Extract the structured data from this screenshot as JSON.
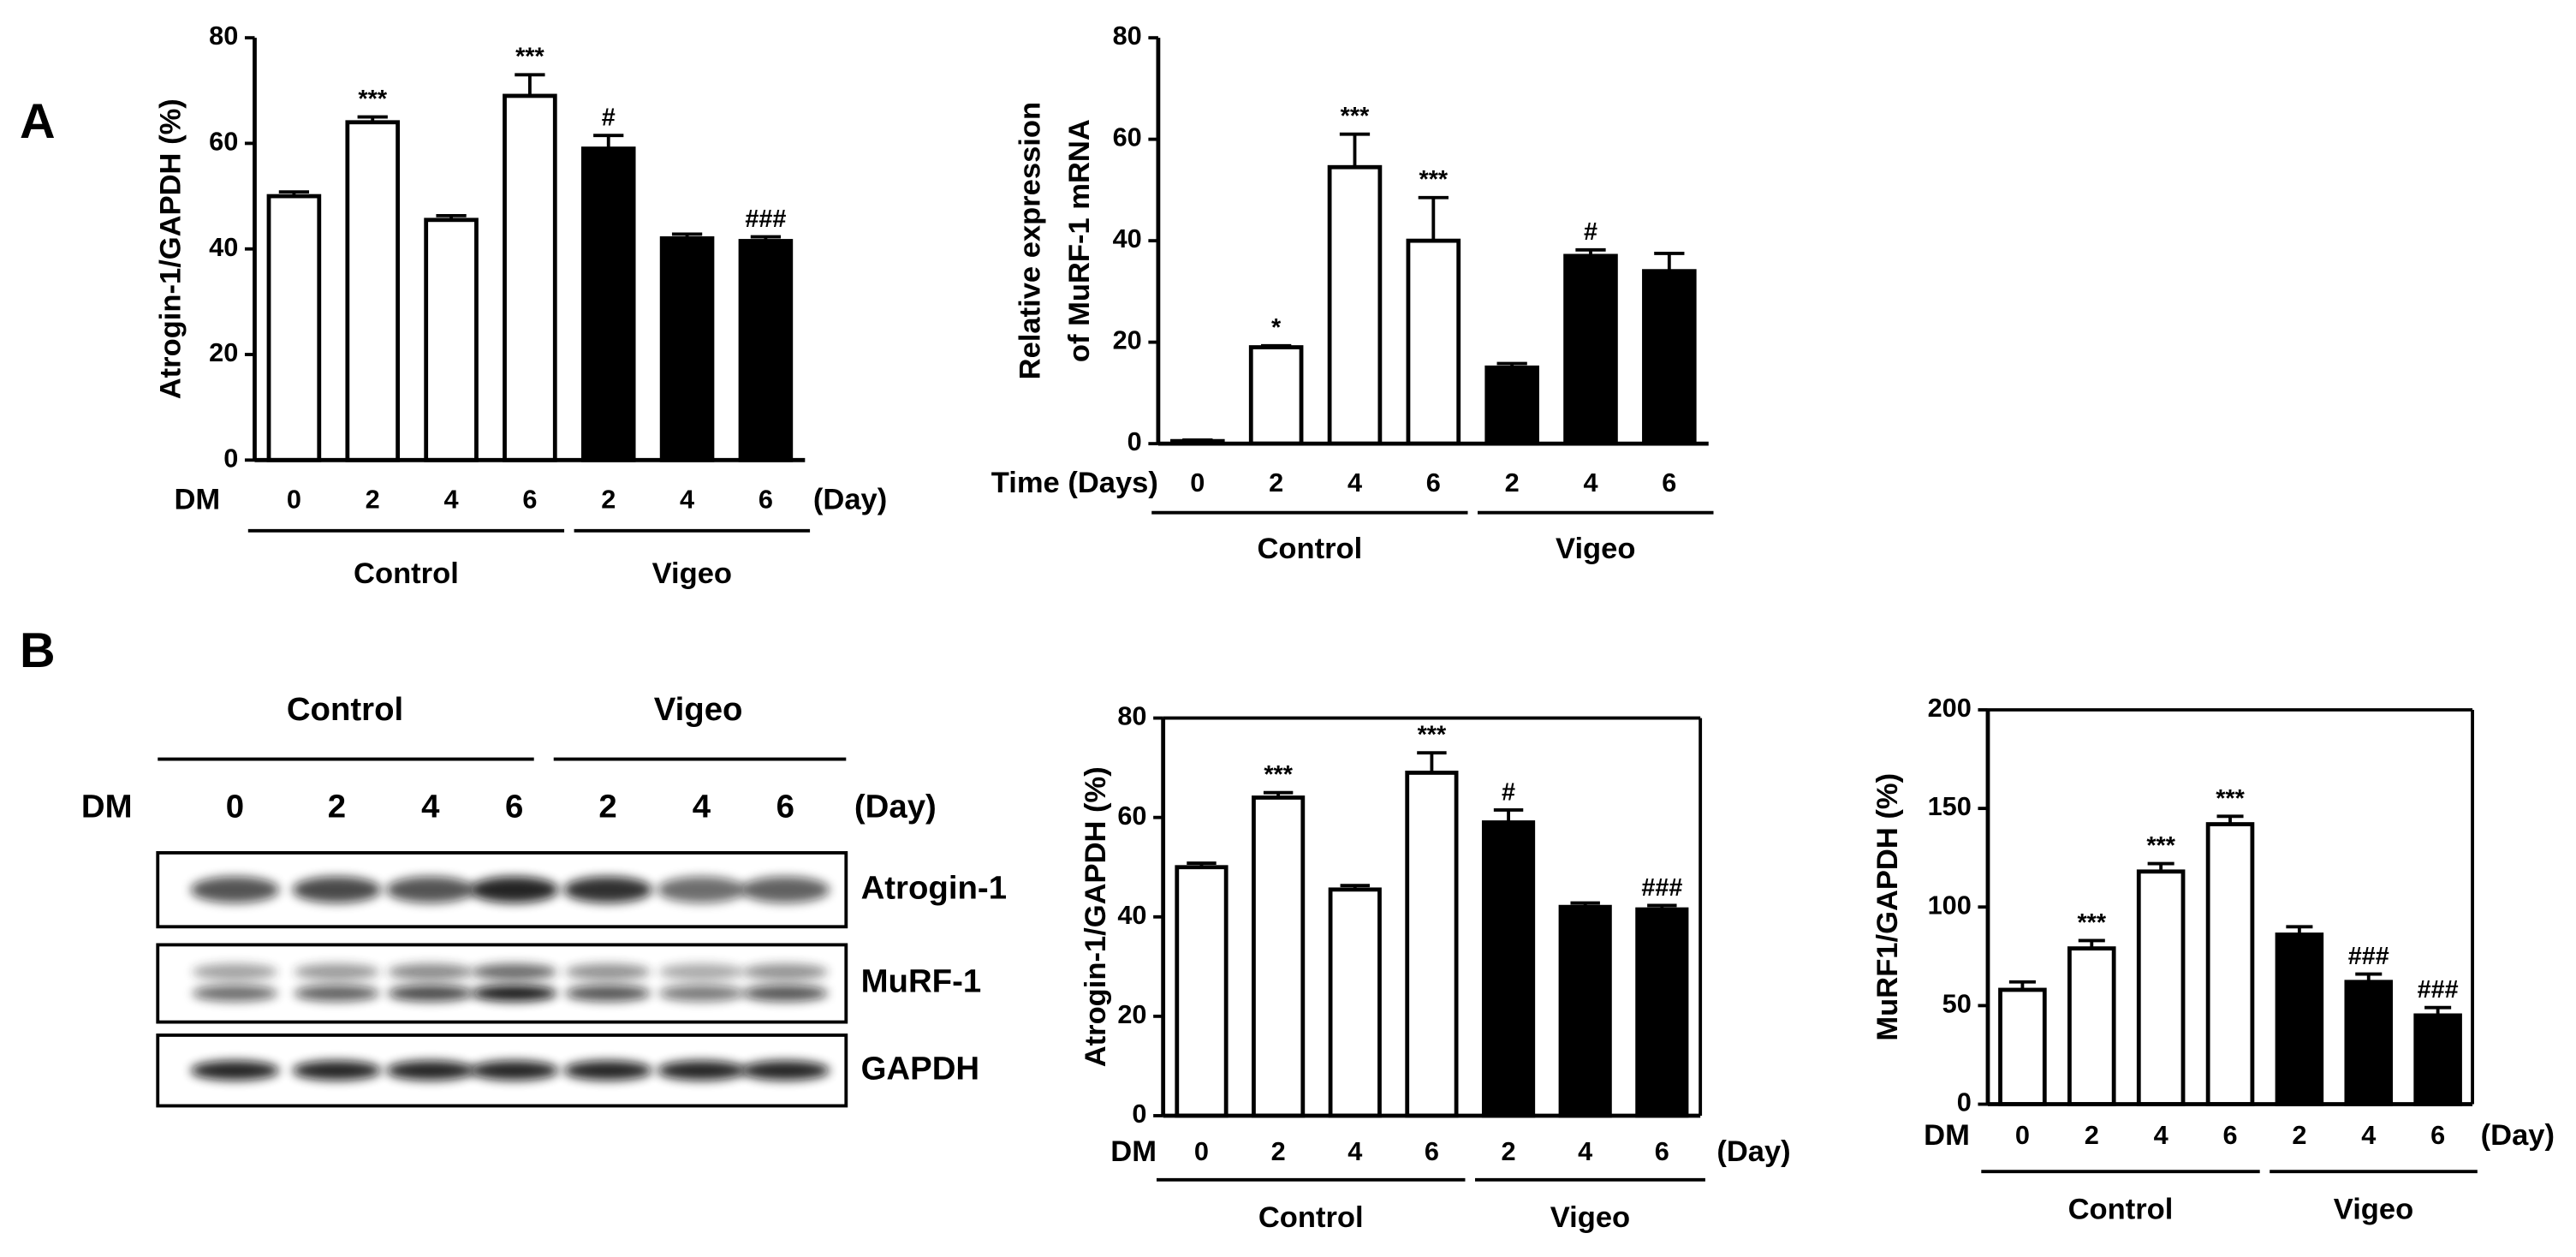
{
  "panels": [
    "A",
    "B"
  ],
  "blot": {
    "groups": [
      "Control",
      "Vigeo"
    ],
    "xlabel": "DM",
    "lanes": [
      "0",
      "2",
      "4",
      "6",
      "2",
      "4",
      "6"
    ],
    "x_suffix": "(Day)",
    "rows": [
      "Atrogin-1",
      "MuRF-1",
      "GAPDH"
    ]
  },
  "chart_data": [
    {
      "type": "bar",
      "ylabel": [
        "Atrogin-1/GAPDH (%)"
      ],
      "xlabel": "DM",
      "x_suffix": "(Day)",
      "categories": [
        "0",
        "2",
        "4",
        "6",
        "2",
        "4",
        "6"
      ],
      "series": [
        {
          "name": "Control",
          "color": "#ffffff",
          "values": [
            50,
            64,
            45.5,
            69,
            null,
            null,
            null
          ],
          "errors": [
            0.8,
            1,
            0.8,
            4,
            null,
            null,
            null
          ],
          "annotations": [
            null,
            "***",
            null,
            "***",
            null,
            null,
            null
          ]
        },
        {
          "name": "Vigeo",
          "color": "#000000",
          "values": [
            null,
            null,
            null,
            null,
            59,
            42,
            41.5
          ],
          "errors": [
            null,
            null,
            null,
            null,
            2.5,
            0.8,
            0.8
          ],
          "annotations": [
            null,
            null,
            null,
            null,
            "#",
            null,
            "###"
          ]
        }
      ],
      "ylim": [
        0,
        80
      ],
      "yticks": [
        0,
        20,
        40,
        60,
        80
      ],
      "frame": false
    },
    {
      "type": "bar",
      "ylabel": [
        "Relative expression",
        "of MuRF-1 mRNA"
      ],
      "xlabel": "Time (Days)",
      "categories": [
        "0",
        "2",
        "4",
        "6",
        "2",
        "4",
        "6"
      ],
      "series": [
        {
          "name": "Control",
          "color": "#ffffff",
          "values": [
            0.5,
            19,
            54.5,
            40,
            null,
            null,
            null
          ],
          "errors": [
            0.2,
            0.3,
            6.5,
            8.5,
            null,
            null,
            null
          ],
          "annotations": [
            null,
            "*",
            "***",
            "***",
            null,
            null,
            null
          ]
        },
        {
          "name": "Vigeo",
          "color": "#000000",
          "values": [
            null,
            null,
            null,
            null,
            15,
            37,
            34
          ],
          "errors": [
            null,
            null,
            null,
            null,
            0.8,
            1.2,
            3.5
          ],
          "annotations": [
            null,
            null,
            null,
            null,
            null,
            "#",
            null
          ]
        }
      ],
      "ylim": [
        0,
        80
      ],
      "yticks": [
        0,
        20,
        40,
        60,
        80
      ],
      "frame": false
    },
    {
      "type": "bar",
      "ylabel": [
        "Atrogin-1/GAPDH (%)"
      ],
      "xlabel": "DM",
      "x_suffix": "(Day)",
      "categories": [
        "0",
        "2",
        "4",
        "6",
        "2",
        "4",
        "6"
      ],
      "series": [
        {
          "name": "Control",
          "color": "#ffffff",
          "values": [
            50,
            64,
            45.5,
            69,
            null,
            null,
            null
          ],
          "errors": [
            0.8,
            1,
            0.8,
            4,
            null,
            null,
            null
          ],
          "annotations": [
            null,
            "***",
            null,
            "***",
            null,
            null,
            null
          ]
        },
        {
          "name": "Vigeo",
          "color": "#000000",
          "values": [
            null,
            null,
            null,
            null,
            59,
            42,
            41.5
          ],
          "errors": [
            null,
            null,
            null,
            null,
            2.5,
            0.8,
            0.8
          ],
          "annotations": [
            null,
            null,
            null,
            null,
            "#",
            null,
            "###"
          ]
        }
      ],
      "ylim": [
        0,
        80
      ],
      "yticks": [
        0,
        20,
        40,
        60,
        80
      ],
      "frame": true
    },
    {
      "type": "bar",
      "ylabel": [
        "MuRF1/GAPDH (%)"
      ],
      "xlabel": "DM",
      "x_suffix": "(Day)",
      "categories": [
        "0",
        "2",
        "4",
        "6",
        "2",
        "4",
        "6"
      ],
      "series": [
        {
          "name": "Control",
          "color": "#ffffff",
          "values": [
            58,
            79,
            118,
            142,
            null,
            null,
            null
          ],
          "errors": [
            4,
            4,
            4,
            4,
            null,
            null,
            null
          ],
          "annotations": [
            null,
            "***",
            "***",
            "***",
            null,
            null,
            null
          ]
        },
        {
          "name": "Vigeo",
          "color": "#000000",
          "values": [
            null,
            null,
            null,
            null,
            86,
            62,
            45
          ],
          "errors": [
            null,
            null,
            null,
            null,
            4,
            4,
            4
          ],
          "annotations": [
            null,
            null,
            null,
            null,
            null,
            "###",
            "###"
          ]
        }
      ],
      "ylim": [
        0,
        200
      ],
      "yticks": [
        0,
        50,
        100,
        150,
        200
      ],
      "frame": true
    }
  ]
}
